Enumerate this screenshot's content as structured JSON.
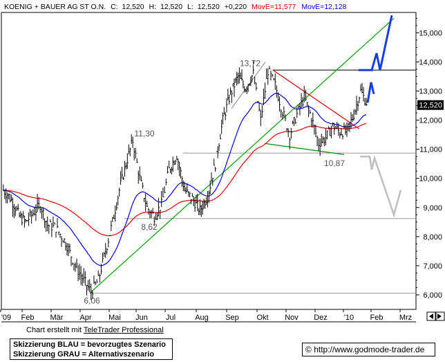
{
  "header": {
    "symbol": "KOENIG + BAUER AG ST O.N.",
    "close_label": "C:",
    "close": "12,520",
    "high_label": "H:",
    "high": "12,520",
    "low_label": "L:",
    "low": "12,520",
    "change": "+0,220",
    "ma1_label": "MovE=",
    "ma1_value": "11,577",
    "ma1_color": "#e00000",
    "ma2_label": "MovE=",
    "ma2_value": "12,128",
    "ma2_color": "#0000e0"
  },
  "chart_data": {
    "type": "line",
    "title": "KOENIG + BAUER AG ST O.N.",
    "x_ticks": [
      "'09",
      "Feb",
      "Mär",
      "Apr",
      "Mai",
      "Jun",
      "Jul",
      "Aug",
      "Sep",
      "Okt",
      "Nov",
      "Dez",
      "'10",
      "Feb",
      "Mrz"
    ],
    "y_ticks": [
      "6,000",
      "7,000",
      "8,000",
      "9,000",
      "10,000",
      "11,000",
      "12,000",
      "13,000",
      "14,000",
      "15,000"
    ],
    "ylim": [
      5.5,
      15.7
    ],
    "last_value": "12,520",
    "grid": false,
    "annotations": [
      {
        "text": "13,72",
        "x": "Sep",
        "y": 13.72
      },
      {
        "text": "11,30",
        "x": "Mai",
        "y": 11.3
      },
      {
        "text": "8,62",
        "x": "Mai",
        "y": 8.62
      },
      {
        "text": "10,87",
        "x": "Dez",
        "y": 10.87
      },
      {
        "text": "6,06",
        "x": "Apr",
        "y": 6.06
      }
    ],
    "horizontal_levels": [
      13.72,
      10.87,
      8.62,
      6.06
    ],
    "price_series": [
      [
        "'09",
        9.6
      ],
      [
        "'09",
        9.4
      ],
      [
        "'09",
        9.1
      ],
      [
        "'09",
        8.7
      ],
      [
        "Feb",
        8.5
      ],
      [
        "Feb",
        8.8
      ],
      [
        "Feb",
        9.1
      ],
      [
        "Feb",
        8.4
      ],
      [
        "Mär",
        8.3
      ],
      [
        "Mär",
        7.8
      ],
      [
        "Mär",
        7.0
      ],
      [
        "Apr",
        6.5
      ],
      [
        "Apr",
        6.1
      ],
      [
        "Apr",
        6.5
      ],
      [
        "Apr",
        7.5
      ],
      [
        "Mai",
        8.5
      ],
      [
        "Mai",
        9.6
      ],
      [
        "Mai",
        10.5
      ],
      [
        "Mai",
        11.3
      ],
      [
        "Jun",
        10.0
      ],
      [
        "Jun",
        9.0
      ],
      [
        "Jun",
        8.7
      ],
      [
        "Jun",
        9.1
      ],
      [
        "Jul",
        10.3
      ],
      [
        "Jul",
        10.8
      ],
      [
        "Jul",
        9.6
      ],
      [
        "Jul",
        9.3
      ],
      [
        "Aug",
        8.9
      ],
      [
        "Aug",
        9.4
      ],
      [
        "Aug",
        10.5
      ],
      [
        "Aug",
        12.0
      ],
      [
        "Sep",
        12.9
      ],
      [
        "Sep",
        13.5
      ],
      [
        "Sep",
        13.1
      ],
      [
        "Sep",
        13.6
      ],
      [
        "Okt",
        12.0
      ],
      [
        "Okt",
        13.7
      ],
      [
        "Okt",
        13.2
      ],
      [
        "Okt",
        12.3
      ],
      [
        "Nov",
        11.5
      ],
      [
        "Nov",
        12.2
      ],
      [
        "Nov",
        12.8
      ],
      [
        "Nov",
        12.1
      ],
      [
        "Dez",
        11.2
      ],
      [
        "Dez",
        11.4
      ],
      [
        "Dez",
        11.8
      ],
      [
        "Dez",
        11.6
      ],
      [
        "'10",
        11.6
      ],
      [
        "'10",
        12.2
      ],
      [
        "'10",
        13.0
      ],
      [
        "'10",
        12.52
      ]
    ],
    "series": [
      {
        "name": "MovE=11,577",
        "color": "#e00000"
      },
      {
        "name": "MovE=12,128",
        "color": "#0000e0"
      }
    ],
    "scenario_blue": {
      "color": "#1a3be0"
    },
    "scenario_gray": {
      "color": "#c0c0c0"
    }
  },
  "footer": {
    "credit_prefix": "Chart erstellt mit ",
    "credit_link": "TeleTrader Professional",
    "legend_line1": "Skizzierung BLAU = bevorzugtes Szenario",
    "legend_line2": "Skizzierung GRAU = Alternativszenario",
    "copyright_symbol": "©",
    "url": "http://www.godmode-trader.de"
  },
  "colors": {
    "price": "#000000",
    "trend_line": "#00a000",
    "resistance": "#555555",
    "triangle_red": "#d00000",
    "triangle_green": "#009000"
  }
}
